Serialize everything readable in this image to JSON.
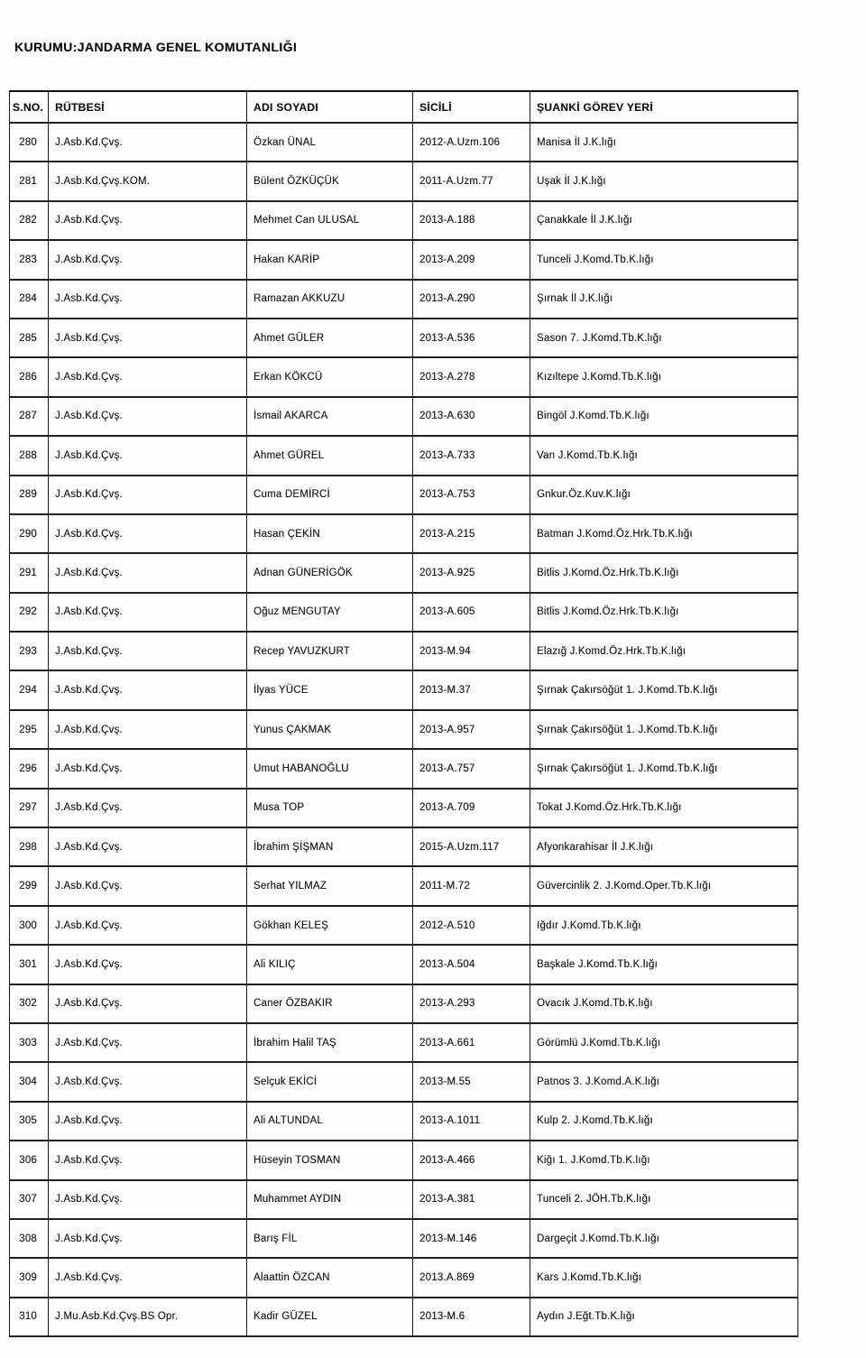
{
  "document": {
    "title": "KURUMU:JANDARMA GENEL KOMUTANLIĞI"
  },
  "table": {
    "columns": [
      "S.NO.",
      "RÜTBESİ",
      "ADI SOYADI",
      "SİCİLİ",
      "ŞUANKİ GÖREV YERİ"
    ],
    "rows": [
      {
        "no": "280",
        "rutbe": "J.Asb.Kd.Çvş.",
        "ad": "Özkan ÜNAL",
        "sicil": "2012-A.Uzm.106",
        "gorev": "Manisa İl J.K.lığı"
      },
      {
        "no": "281",
        "rutbe": "J.Asb.Kd.Çvş.KOM.",
        "ad": "Bülent ÖZKÜÇÜK",
        "sicil": "2011-A.Uzm.77",
        "gorev": "Uşak İl J.K.lığı"
      },
      {
        "no": "282",
        "rutbe": "J.Asb.Kd.Çvş.",
        "ad": "Mehmet Can ULUSAL",
        "sicil": "2013-A.188",
        "gorev": "Çanakkale İl J.K.lığı"
      },
      {
        "no": "283",
        "rutbe": "J.Asb.Kd.Çvş.",
        "ad": "Hakan KARİP",
        "sicil": "2013-A.209",
        "gorev": "Tunceli J.Komd.Tb.K.lığı"
      },
      {
        "no": "284",
        "rutbe": "J.Asb.Kd.Çvş.",
        "ad": "Ramazan AKKUZU",
        "sicil": "2013-A.290",
        "gorev": "Şırnak İl J.K.lığı"
      },
      {
        "no": "285",
        "rutbe": "J.Asb.Kd.Çvş.",
        "ad": "Ahmet GÜLER",
        "sicil": "2013-A.536",
        "gorev": "Sason 7. J.Komd.Tb.K.lığı"
      },
      {
        "no": "286",
        "rutbe": "J.Asb.Kd.Çvş.",
        "ad": "Erkan KÖKCÜ",
        "sicil": "2013-A.278",
        "gorev": "Kızıltepe J.Komd.Tb.K.lığı"
      },
      {
        "no": "287",
        "rutbe": "J.Asb.Kd.Çvş.",
        "ad": "İsmail AKARCA",
        "sicil": "2013-A.630",
        "gorev": "Bingöl J.Komd.Tb.K.lığı"
      },
      {
        "no": "288",
        "rutbe": "J.Asb.Kd.Çvş.",
        "ad": "Ahmet GÜREL",
        "sicil": "2013-A.733",
        "gorev": "Van J.Komd.Tb.K.lığı"
      },
      {
        "no": "289",
        "rutbe": "J.Asb.Kd.Çvş.",
        "ad": "Cuma DEMİRCİ",
        "sicil": "2013-A.753",
        "gorev": "Gnkur.Öz.Kuv.K.lığı"
      },
      {
        "no": "290",
        "rutbe": "J.Asb.Kd.Çvş.",
        "ad": "Hasan ÇEKİN",
        "sicil": "2013-A.215",
        "gorev": "Batman J.Komd.Öz.Hrk.Tb.K.lığı"
      },
      {
        "no": "291",
        "rutbe": "J.Asb.Kd.Çvş.",
        "ad": "Adnan GÜNERİGÖK",
        "sicil": "2013-A.925",
        "gorev": "Bitlis J.Komd.Öz.Hrk.Tb.K.lığı"
      },
      {
        "no": "292",
        "rutbe": "J.Asb.Kd.Çvş.",
        "ad": "Oğuz MENGUTAY",
        "sicil": "2013-A.605",
        "gorev": "Bitlis J.Komd.Öz.Hrk.Tb.K.lığı"
      },
      {
        "no": "293",
        "rutbe": "J.Asb.Kd.Çvş.",
        "ad": "Recep YAVUZKURT",
        "sicil": "2013-M.94",
        "gorev": "Elazığ J.Komd.Öz.Hrk.Tb.K.lığı"
      },
      {
        "no": "294",
        "rutbe": "J.Asb.Kd.Çvş.",
        "ad": "İlyas YÜCE",
        "sicil": "2013-M.37",
        "gorev": "Şırnak Çakırsöğüt 1. J.Komd.Tb.K.lığı"
      },
      {
        "no": "295",
        "rutbe": "J.Asb.Kd.Çvş.",
        "ad": "Yunus ÇAKMAK",
        "sicil": "2013-A.957",
        "gorev": "Şırnak Çakırsöğüt 1. J.Komd.Tb.K.lığı"
      },
      {
        "no": "296",
        "rutbe": "J.Asb.Kd.Çvş.",
        "ad": "Umut HABANOĞLU",
        "sicil": "2013-A.757",
        "gorev": "Şırnak Çakırsöğüt 1. J.Komd.Tb.K.lığı"
      },
      {
        "no": "297",
        "rutbe": "J.Asb.Kd.Çvş.",
        "ad": "Musa TOP",
        "sicil": "2013-A.709",
        "gorev": "Tokat J.Komd.Öz.Hrk.Tb.K.lığı"
      },
      {
        "no": "298",
        "rutbe": "J.Asb.Kd.Çvş.",
        "ad": "İbrahim ŞİŞMAN",
        "sicil": "2015-A.Uzm.117",
        "gorev": "Afyonkarahisar İl J.K.lığı"
      },
      {
        "no": "299",
        "rutbe": "J.Asb.Kd.Çvş.",
        "ad": "Serhat YILMAZ",
        "sicil": "2011-M.72",
        "gorev": "Güvercinlik 2. J.Komd.Oper.Tb.K.lığı"
      },
      {
        "no": "300",
        "rutbe": "J.Asb.Kd.Çvş.",
        "ad": "Gökhan KELEŞ",
        "sicil": "2012-A.510",
        "gorev": "Iğdır J.Komd.Tb.K.lığı"
      },
      {
        "no": "301",
        "rutbe": "J.Asb.Kd.Çvş.",
        "ad": "Ali KILIÇ",
        "sicil": "2013-A.504",
        "gorev": "Başkale J.Komd.Tb.K.lığı"
      },
      {
        "no": "302",
        "rutbe": "J.Asb.Kd.Çvş.",
        "ad": "Caner ÖZBAKIR",
        "sicil": "2013-A.293",
        "gorev": "Ovacık J.Komd.Tb.K.lığı"
      },
      {
        "no": "303",
        "rutbe": "J.Asb.Kd.Çvş.",
        "ad": "İbrahim Halil TAŞ",
        "sicil": "2013-A.661",
        "gorev": "Görümlü J.Komd.Tb.K.lığı"
      },
      {
        "no": "304",
        "rutbe": "J.Asb.Kd.Çvş.",
        "ad": "Selçuk EKİCİ",
        "sicil": "2013-M.55",
        "gorev": "Patnos 3. J.Komd.A.K.lığı"
      },
      {
        "no": "305",
        "rutbe": "J.Asb.Kd.Çvş.",
        "ad": "Ali ALTUNDAL",
        "sicil": "2013-A.1011",
        "gorev": "Kulp 2. J.Komd.Tb.K.lığı"
      },
      {
        "no": "306",
        "rutbe": "J.Asb.Kd.Çvş.",
        "ad": "Hüseyin TOSMAN",
        "sicil": "2013-A.466",
        "gorev": "Kiğı 1. J.Komd.Tb.K.lığı"
      },
      {
        "no": "307",
        "rutbe": "J.Asb.Kd.Çvş.",
        "ad": "Muhammet AYDIN",
        "sicil": "2013-A.381",
        "gorev": "Tunceli 2. JÖH.Tb.K.lığı"
      },
      {
        "no": "308",
        "rutbe": "J.Asb.Kd.Çvş.",
        "ad": "Barış FİL",
        "sicil": "2013-M.146",
        "gorev": "Dargeçit J.Komd.Tb.K.lığı"
      },
      {
        "no": "309",
        "rutbe": "J.Asb.Kd.Çvş.",
        "ad": "Alaattin ÖZCAN",
        "sicil": "2013.A.869",
        "gorev": "Kars J.Komd.Tb.K.lığı"
      },
      {
        "no": "310",
        "rutbe": "J.Mu.Asb.Kd.Çvş.BS Opr.",
        "ad": "Kadir GÜZEL",
        "sicil": "2013-M.6",
        "gorev": "Aydın J.Eğt.Tb.K.lığı"
      }
    ]
  }
}
